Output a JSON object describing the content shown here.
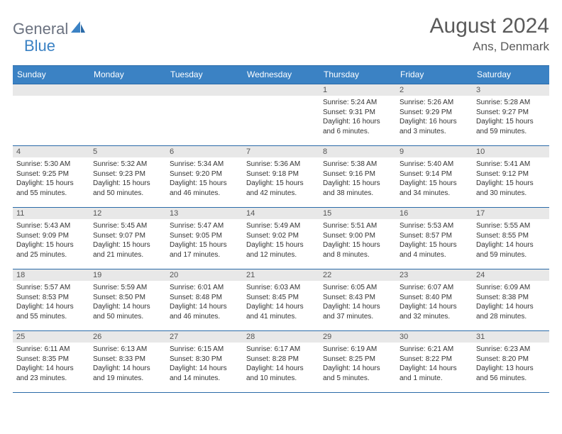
{
  "brand": {
    "part1": "General",
    "part2": "Blue"
  },
  "title": "August 2024",
  "location": "Ans, Denmark",
  "colors": {
    "header_bg": "#3b82c4",
    "border": "#2a6aa8",
    "daynum_bg": "#e8e8e8",
    "logo_gray": "#6b7280",
    "logo_blue": "#3b82c4",
    "title_color": "#5a5a5a"
  },
  "day_headers": [
    "Sunday",
    "Monday",
    "Tuesday",
    "Wednesday",
    "Thursday",
    "Friday",
    "Saturday"
  ],
  "weeks": [
    [
      {
        "num": "",
        "sunrise": "",
        "sunset": "",
        "daylight": ""
      },
      {
        "num": "",
        "sunrise": "",
        "sunset": "",
        "daylight": ""
      },
      {
        "num": "",
        "sunrise": "",
        "sunset": "",
        "daylight": ""
      },
      {
        "num": "",
        "sunrise": "",
        "sunset": "",
        "daylight": ""
      },
      {
        "num": "1",
        "sunrise": "Sunrise: 5:24 AM",
        "sunset": "Sunset: 9:31 PM",
        "daylight": "Daylight: 16 hours and 6 minutes."
      },
      {
        "num": "2",
        "sunrise": "Sunrise: 5:26 AM",
        "sunset": "Sunset: 9:29 PM",
        "daylight": "Daylight: 16 hours and 3 minutes."
      },
      {
        "num": "3",
        "sunrise": "Sunrise: 5:28 AM",
        "sunset": "Sunset: 9:27 PM",
        "daylight": "Daylight: 15 hours and 59 minutes."
      }
    ],
    [
      {
        "num": "4",
        "sunrise": "Sunrise: 5:30 AM",
        "sunset": "Sunset: 9:25 PM",
        "daylight": "Daylight: 15 hours and 55 minutes."
      },
      {
        "num": "5",
        "sunrise": "Sunrise: 5:32 AM",
        "sunset": "Sunset: 9:23 PM",
        "daylight": "Daylight: 15 hours and 50 minutes."
      },
      {
        "num": "6",
        "sunrise": "Sunrise: 5:34 AM",
        "sunset": "Sunset: 9:20 PM",
        "daylight": "Daylight: 15 hours and 46 minutes."
      },
      {
        "num": "7",
        "sunrise": "Sunrise: 5:36 AM",
        "sunset": "Sunset: 9:18 PM",
        "daylight": "Daylight: 15 hours and 42 minutes."
      },
      {
        "num": "8",
        "sunrise": "Sunrise: 5:38 AM",
        "sunset": "Sunset: 9:16 PM",
        "daylight": "Daylight: 15 hours and 38 minutes."
      },
      {
        "num": "9",
        "sunrise": "Sunrise: 5:40 AM",
        "sunset": "Sunset: 9:14 PM",
        "daylight": "Daylight: 15 hours and 34 minutes."
      },
      {
        "num": "10",
        "sunrise": "Sunrise: 5:41 AM",
        "sunset": "Sunset: 9:12 PM",
        "daylight": "Daylight: 15 hours and 30 minutes."
      }
    ],
    [
      {
        "num": "11",
        "sunrise": "Sunrise: 5:43 AM",
        "sunset": "Sunset: 9:09 PM",
        "daylight": "Daylight: 15 hours and 25 minutes."
      },
      {
        "num": "12",
        "sunrise": "Sunrise: 5:45 AM",
        "sunset": "Sunset: 9:07 PM",
        "daylight": "Daylight: 15 hours and 21 minutes."
      },
      {
        "num": "13",
        "sunrise": "Sunrise: 5:47 AM",
        "sunset": "Sunset: 9:05 PM",
        "daylight": "Daylight: 15 hours and 17 minutes."
      },
      {
        "num": "14",
        "sunrise": "Sunrise: 5:49 AM",
        "sunset": "Sunset: 9:02 PM",
        "daylight": "Daylight: 15 hours and 12 minutes."
      },
      {
        "num": "15",
        "sunrise": "Sunrise: 5:51 AM",
        "sunset": "Sunset: 9:00 PM",
        "daylight": "Daylight: 15 hours and 8 minutes."
      },
      {
        "num": "16",
        "sunrise": "Sunrise: 5:53 AM",
        "sunset": "Sunset: 8:57 PM",
        "daylight": "Daylight: 15 hours and 4 minutes."
      },
      {
        "num": "17",
        "sunrise": "Sunrise: 5:55 AM",
        "sunset": "Sunset: 8:55 PM",
        "daylight": "Daylight: 14 hours and 59 minutes."
      }
    ],
    [
      {
        "num": "18",
        "sunrise": "Sunrise: 5:57 AM",
        "sunset": "Sunset: 8:53 PM",
        "daylight": "Daylight: 14 hours and 55 minutes."
      },
      {
        "num": "19",
        "sunrise": "Sunrise: 5:59 AM",
        "sunset": "Sunset: 8:50 PM",
        "daylight": "Daylight: 14 hours and 50 minutes."
      },
      {
        "num": "20",
        "sunrise": "Sunrise: 6:01 AM",
        "sunset": "Sunset: 8:48 PM",
        "daylight": "Daylight: 14 hours and 46 minutes."
      },
      {
        "num": "21",
        "sunrise": "Sunrise: 6:03 AM",
        "sunset": "Sunset: 8:45 PM",
        "daylight": "Daylight: 14 hours and 41 minutes."
      },
      {
        "num": "22",
        "sunrise": "Sunrise: 6:05 AM",
        "sunset": "Sunset: 8:43 PM",
        "daylight": "Daylight: 14 hours and 37 minutes."
      },
      {
        "num": "23",
        "sunrise": "Sunrise: 6:07 AM",
        "sunset": "Sunset: 8:40 PM",
        "daylight": "Daylight: 14 hours and 32 minutes."
      },
      {
        "num": "24",
        "sunrise": "Sunrise: 6:09 AM",
        "sunset": "Sunset: 8:38 PM",
        "daylight": "Daylight: 14 hours and 28 minutes."
      }
    ],
    [
      {
        "num": "25",
        "sunrise": "Sunrise: 6:11 AM",
        "sunset": "Sunset: 8:35 PM",
        "daylight": "Daylight: 14 hours and 23 minutes."
      },
      {
        "num": "26",
        "sunrise": "Sunrise: 6:13 AM",
        "sunset": "Sunset: 8:33 PM",
        "daylight": "Daylight: 14 hours and 19 minutes."
      },
      {
        "num": "27",
        "sunrise": "Sunrise: 6:15 AM",
        "sunset": "Sunset: 8:30 PM",
        "daylight": "Daylight: 14 hours and 14 minutes."
      },
      {
        "num": "28",
        "sunrise": "Sunrise: 6:17 AM",
        "sunset": "Sunset: 8:28 PM",
        "daylight": "Daylight: 14 hours and 10 minutes."
      },
      {
        "num": "29",
        "sunrise": "Sunrise: 6:19 AM",
        "sunset": "Sunset: 8:25 PM",
        "daylight": "Daylight: 14 hours and 5 minutes."
      },
      {
        "num": "30",
        "sunrise": "Sunrise: 6:21 AM",
        "sunset": "Sunset: 8:22 PM",
        "daylight": "Daylight: 14 hours and 1 minute."
      },
      {
        "num": "31",
        "sunrise": "Sunrise: 6:23 AM",
        "sunset": "Sunset: 8:20 PM",
        "daylight": "Daylight: 13 hours and 56 minutes."
      }
    ]
  ]
}
